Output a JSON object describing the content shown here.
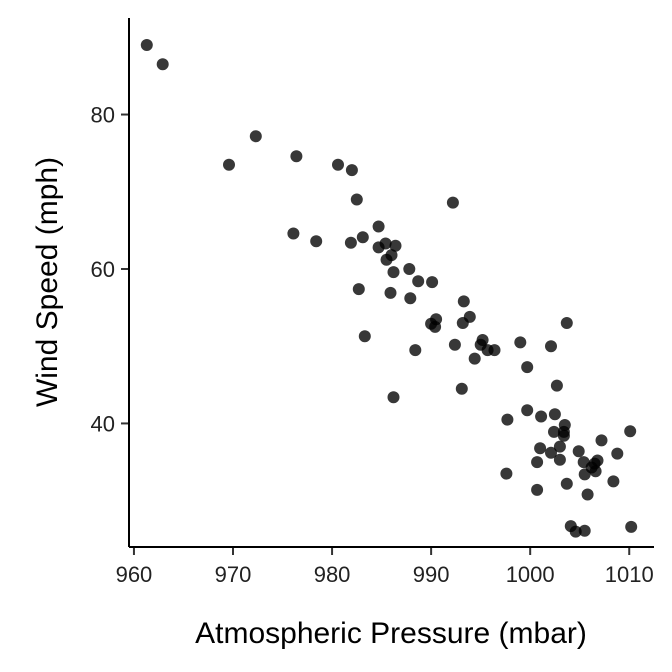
{
  "chart_data": {
    "type": "scatter",
    "title": "",
    "xlabel": "Atmospheric Pressure (mbar)",
    "ylabel": "Wind Speed (mph)",
    "xlim": [
      959.5,
      1012.5
    ],
    "ylim": [
      24,
      92.5
    ],
    "xticks": [
      960,
      970,
      980,
      990,
      1000,
      1010
    ],
    "yticks": [
      40,
      60,
      80
    ],
    "grid": false,
    "legend": "none",
    "point_color": "#000000",
    "points": [
      [
        961.3,
        89.0
      ],
      [
        962.9,
        86.5
      ],
      [
        969.6,
        73.5
      ],
      [
        972.3,
        77.2
      ],
      [
        976.4,
        74.6
      ],
      [
        976.1,
        64.6
      ],
      [
        978.4,
        63.6
      ],
      [
        980.6,
        73.5
      ],
      [
        982.0,
        72.8
      ],
      [
        982.5,
        69.0
      ],
      [
        981.9,
        63.4
      ],
      [
        983.1,
        64.1
      ],
      [
        982.7,
        57.4
      ],
      [
        983.3,
        51.3
      ],
      [
        984.7,
        65.5
      ],
      [
        984.7,
        62.8
      ],
      [
        985.4,
        63.3
      ],
      [
        985.5,
        61.2
      ],
      [
        986.0,
        61.8
      ],
      [
        986.4,
        63.0
      ],
      [
        986.2,
        59.6
      ],
      [
        985.9,
        56.9
      ],
      [
        986.2,
        43.4
      ],
      [
        987.8,
        60.0
      ],
      [
        987.9,
        56.2
      ],
      [
        988.7,
        58.4
      ],
      [
        990.1,
        58.3
      ],
      [
        990.0,
        52.9
      ],
      [
        990.5,
        53.5
      ],
      [
        990.4,
        52.5
      ],
      [
        988.4,
        49.5
      ],
      [
        992.2,
        68.6
      ],
      [
        992.4,
        50.2
      ],
      [
        993.3,
        55.8
      ],
      [
        993.2,
        53.0
      ],
      [
        993.9,
        53.8
      ],
      [
        993.1,
        44.5
      ],
      [
        994.4,
        48.4
      ],
      [
        995.0,
        50.2
      ],
      [
        995.2,
        50.8
      ],
      [
        995.7,
        49.5
      ],
      [
        996.4,
        49.5
      ],
      [
        997.7,
        40.5
      ],
      [
        997.6,
        33.5
      ],
      [
        999.0,
        50.5
      ],
      [
        999.7,
        47.3
      ],
      [
        999.7,
        41.7
      ],
      [
        1001.1,
        40.9
      ],
      [
        1000.7,
        35.0
      ],
      [
        1001.0,
        36.8
      ],
      [
        1000.7,
        31.4
      ],
      [
        1002.1,
        50.0
      ],
      [
        1002.5,
        41.2
      ],
      [
        1002.4,
        38.9
      ],
      [
        1002.1,
        36.2
      ],
      [
        1002.7,
        44.9
      ],
      [
        1003.0,
        37.0
      ],
      [
        1003.0,
        35.3
      ],
      [
        1003.7,
        53.0
      ],
      [
        1003.5,
        39.8
      ],
      [
        1003.4,
        38.4
      ],
      [
        1003.4,
        38.9
      ],
      [
        1003.7,
        32.2
      ],
      [
        1004.1,
        26.7
      ],
      [
        1004.6,
        26.0
      ],
      [
        1004.9,
        36.4
      ],
      [
        1005.4,
        35.0
      ],
      [
        1005.5,
        33.4
      ],
      [
        1005.5,
        26.1
      ],
      [
        1005.8,
        30.8
      ],
      [
        1006.2,
        34.3
      ],
      [
        1006.8,
        35.2
      ],
      [
        1006.5,
        34.8
      ],
      [
        1006.6,
        33.8
      ],
      [
        1007.2,
        37.8
      ],
      [
        1008.4,
        32.5
      ],
      [
        1008.8,
        36.1
      ],
      [
        1010.1,
        39.0
      ],
      [
        1010.2,
        26.6
      ]
    ]
  }
}
